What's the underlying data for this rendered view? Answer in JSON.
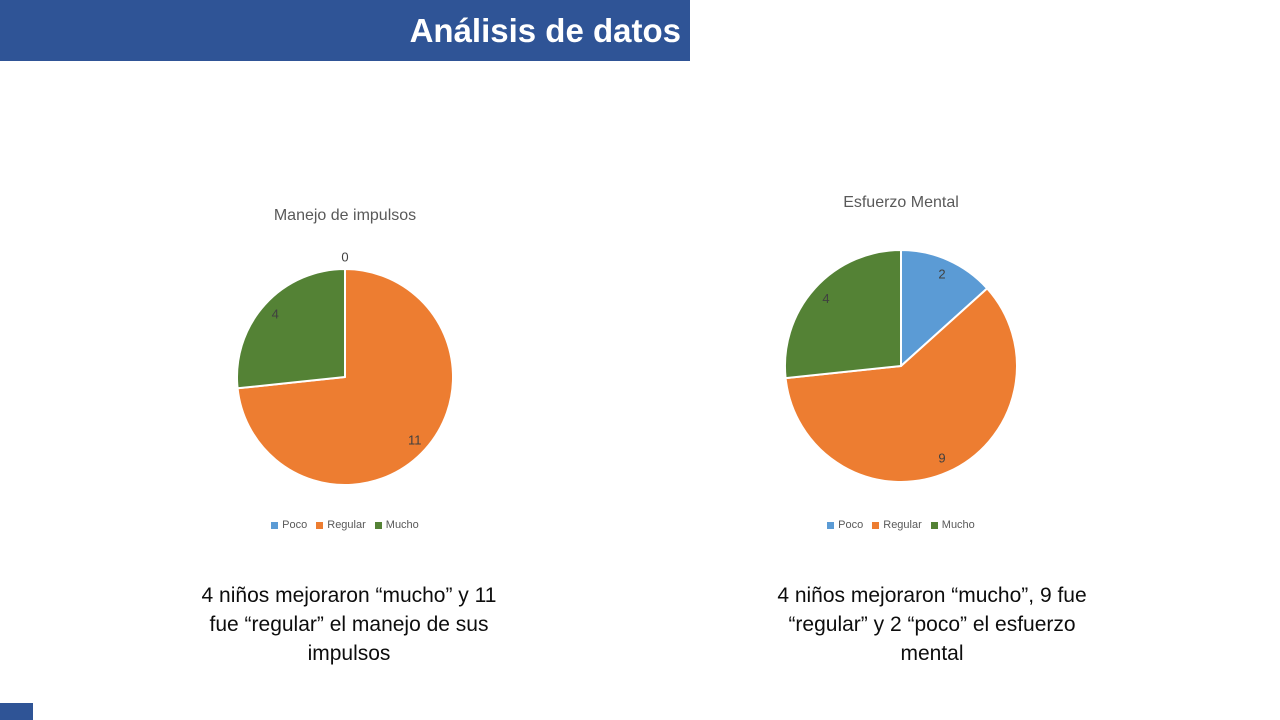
{
  "header": {
    "title": "Análisis de datos",
    "bar_color": "#2F5496",
    "text_color": "#FFFFFF"
  },
  "chart_data": [
    {
      "type": "pie",
      "title": "Manejo de impulsos",
      "categories": [
        "Poco",
        "Regular",
        "Mucho"
      ],
      "values": [
        0,
        11,
        4
      ],
      "data_labels": [
        "0",
        "11",
        "4"
      ],
      "colors": [
        "#5B9BD5",
        "#ED7D31",
        "#548235"
      ],
      "start_angle_deg": 0,
      "direction": "clockwise",
      "legend_position": "bottom"
    },
    {
      "type": "pie",
      "title": "Esfuerzo Mental",
      "categories": [
        "Poco",
        "Regular",
        "Mucho"
      ],
      "values": [
        2,
        9,
        4
      ],
      "data_labels": [
        "2",
        "9",
        "4"
      ],
      "colors": [
        "#5B9BD5",
        "#ED7D31",
        "#548235"
      ],
      "start_angle_deg": 0,
      "direction": "clockwise",
      "legend_position": "bottom"
    }
  ],
  "captions": {
    "left": "4 niños mejoraron “mucho” y 11\nfue “regular” el manejo de sus\nimpulsos",
    "right": "4 niños mejoraron “mucho”, 9 fue\n“regular” y 2 “poco” el esfuerzo\nmental"
  },
  "footer": {
    "accent_color": "#2F5496"
  },
  "styles": {
    "chart_title_color": "#595959",
    "data_label_color": "#404040",
    "legend_text_color": "#595959"
  }
}
